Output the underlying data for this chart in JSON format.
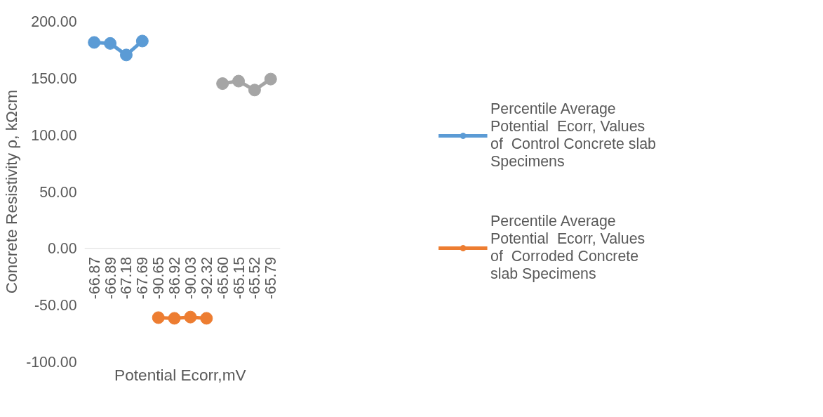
{
  "chart_data": {
    "type": "line",
    "xlabel": "Potential  Ecorr,mV",
    "ylabel": "Concrete Resistivity ρ, kΩcm",
    "categories": [
      "-66.87",
      "-66.89",
      "-67.18",
      "-67.69",
      "-90.65",
      "-86.92",
      "-90.03",
      "-92.32",
      "-65.60",
      "-65.15",
      "-65.52",
      "-65.79"
    ],
    "series": [
      {
        "name": "Percentile Average Potential  Ecorr, Values of  Control Concrete slab Specimens",
        "color": "#5b9bd5",
        "values": [
          181.5,
          180.6,
          170.4,
          182.7,
          null,
          null,
          null,
          null,
          null,
          null,
          null,
          null
        ]
      },
      {
        "name": "Percentile Average Potential  Ecorr, Values of  Corroded Concrete slab Specimens",
        "color": "#ed7d31",
        "values": [
          null,
          null,
          null,
          null,
          -61.0,
          -61.6,
          -60.5,
          -61.6,
          null,
          null,
          null,
          null
        ]
      },
      {
        "color": "#a5a5a5",
        "values": [
          null,
          null,
          null,
          null,
          null,
          null,
          null,
          null,
          145.2,
          147.4,
          139.5,
          149.2
        ]
      }
    ],
    "ylim": [
      -100,
      200
    ],
    "yticks": [
      {
        "value": -100,
        "label": "-100.00"
      },
      {
        "value": -50,
        "label": "-50.00"
      },
      {
        "value": 0,
        "label": "0.00"
      },
      {
        "value": 50,
        "label": "50.00"
      },
      {
        "value": 100,
        "label": "100.00"
      },
      {
        "value": 150,
        "label": "150.00"
      },
      {
        "value": 200,
        "label": "200.00"
      }
    ],
    "marker": "circle",
    "legend": "right",
    "grid": false
  }
}
